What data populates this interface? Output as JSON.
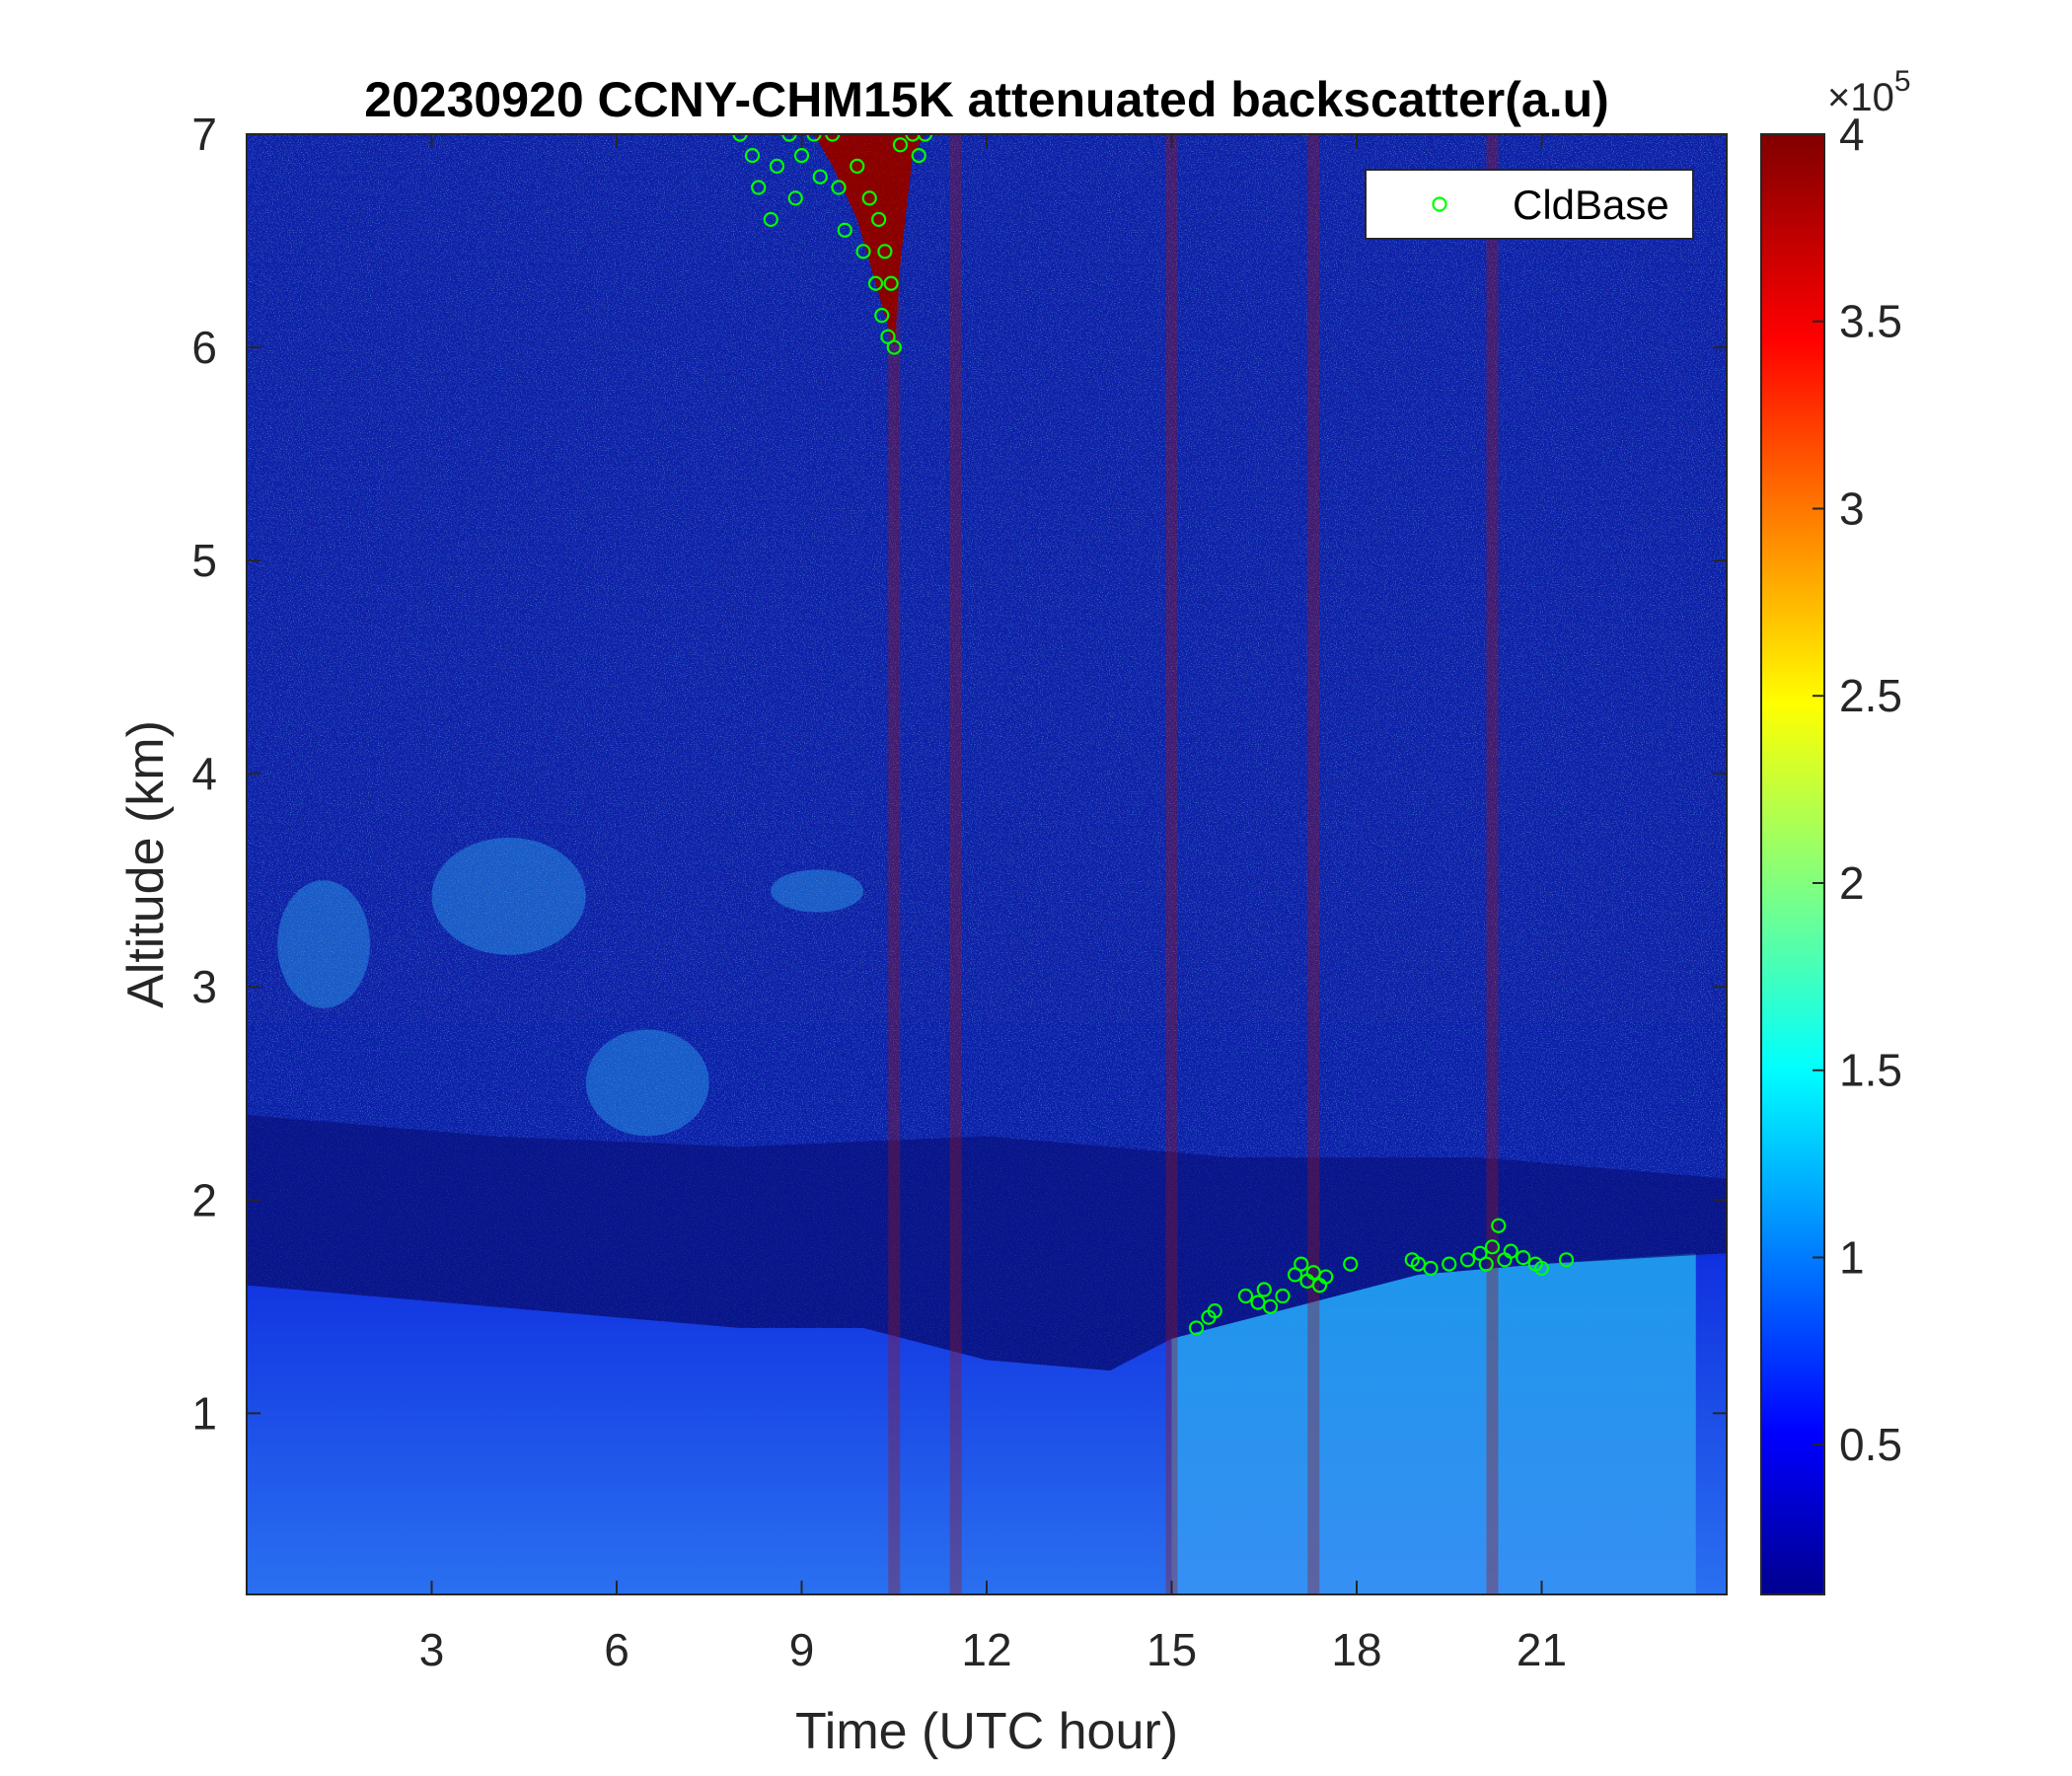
{
  "chart_data": {
    "type": "heatmap",
    "title": "20230920 CCNY-CHM15K attenuated backscatter(a.u)",
    "xlabel": "Time (UTC hour)",
    "ylabel": "Altitude (km)",
    "xlim": [
      0,
      24
    ],
    "ylim": [
      0.15,
      7
    ],
    "x_ticks": [
      3,
      6,
      9,
      12,
      15,
      18,
      21
    ],
    "y_ticks": [
      1,
      2,
      3,
      4,
      5,
      6,
      7
    ],
    "colormap": "jet",
    "colorbar": {
      "clim": [
        0.1,
        4
      ],
      "ticks": [
        0.5,
        1,
        1.5,
        2,
        2.5,
        3,
        3.5,
        4
      ],
      "exponent_label": "×10",
      "exponent": "5"
    },
    "legend": {
      "position": "top-right",
      "entries": [
        {
          "name": "CldBase",
          "marker": "circle",
          "color": "#00ff00"
        }
      ]
    },
    "regions": {
      "boundary_layer_top_km": [
        [
          0,
          1.6
        ],
        [
          2,
          1.55
        ],
        [
          4,
          1.5
        ],
        [
          6,
          1.45
        ],
        [
          8,
          1.4
        ],
        [
          10,
          1.4
        ],
        [
          12,
          1.25
        ],
        [
          14,
          1.2
        ],
        [
          15,
          1.35
        ],
        [
          17,
          1.5
        ],
        [
          19,
          1.65
        ],
        [
          21,
          1.7
        ],
        [
          24,
          1.75
        ]
      ],
      "aerosol_layers": [
        {
          "x": [
            3,
            5.5
          ],
          "y": [
            3.15,
            3.7
          ]
        },
        {
          "x": [
            8.5,
            10
          ],
          "y": [
            3.35,
            3.55
          ]
        },
        {
          "x": [
            0.5,
            2
          ],
          "y": [
            2.9,
            3.5
          ]
        },
        {
          "x": [
            5.5,
            7.5
          ],
          "y": [
            2.3,
            2.8
          ]
        }
      ],
      "high_signal_columns_hours": [
        10.5,
        11.5,
        15,
        17.3,
        20.2
      ]
    },
    "series": [
      {
        "name": "CldBase",
        "points": [
          [
            8.0,
            7.0
          ],
          [
            8.2,
            6.9
          ],
          [
            8.3,
            6.75
          ],
          [
            8.5,
            6.6
          ],
          [
            8.6,
            6.85
          ],
          [
            8.8,
            7.0
          ],
          [
            8.9,
            6.7
          ],
          [
            9.0,
            6.9
          ],
          [
            9.2,
            7.0
          ],
          [
            9.3,
            6.8
          ],
          [
            9.5,
            7.0
          ],
          [
            9.6,
            6.75
          ],
          [
            9.7,
            6.55
          ],
          [
            9.9,
            6.85
          ],
          [
            10.0,
            6.45
          ],
          [
            10.1,
            6.7
          ],
          [
            10.2,
            6.3
          ],
          [
            10.25,
            6.6
          ],
          [
            10.3,
            6.15
          ],
          [
            10.35,
            6.45
          ],
          [
            10.4,
            6.05
          ],
          [
            10.45,
            6.3
          ],
          [
            10.5,
            6.0
          ],
          [
            10.6,
            6.95
          ],
          [
            10.8,
            7.0
          ],
          [
            10.9,
            6.9
          ],
          [
            11.0,
            7.0
          ],
          [
            15.4,
            1.4
          ],
          [
            15.6,
            1.45
          ],
          [
            15.7,
            1.48
          ],
          [
            16.2,
            1.55
          ],
          [
            16.4,
            1.52
          ],
          [
            16.5,
            1.58
          ],
          [
            16.6,
            1.5
          ],
          [
            16.8,
            1.55
          ],
          [
            17.0,
            1.65
          ],
          [
            17.1,
            1.7
          ],
          [
            17.2,
            1.62
          ],
          [
            17.3,
            1.66
          ],
          [
            17.4,
            1.6
          ],
          [
            17.5,
            1.64
          ],
          [
            17.9,
            1.7
          ],
          [
            18.9,
            1.72
          ],
          [
            19.0,
            1.7
          ],
          [
            19.2,
            1.68
          ],
          [
            19.5,
            1.7
          ],
          [
            19.8,
            1.72
          ],
          [
            20.0,
            1.75
          ],
          [
            20.1,
            1.7
          ],
          [
            20.2,
            1.78
          ],
          [
            20.3,
            1.88
          ],
          [
            20.4,
            1.72
          ],
          [
            20.5,
            1.76
          ],
          [
            20.7,
            1.73
          ],
          [
            20.9,
            1.7
          ],
          [
            21.0,
            1.68
          ],
          [
            21.4,
            1.72
          ]
        ]
      }
    ]
  }
}
